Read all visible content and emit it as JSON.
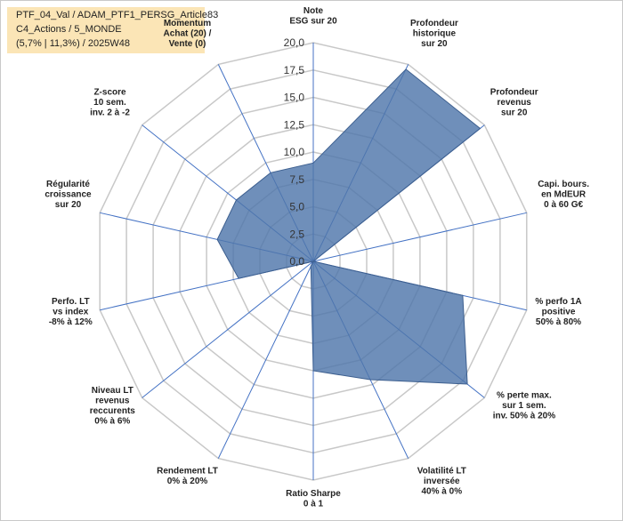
{
  "header": {
    "line1": "PTF_04_Val / ADAM_PTF1_PERSG_Article83",
    "line2": "C4_Actions / 5_MONDE",
    "line3": "(5,7% | 11,3%) / 2025W48"
  },
  "chart_data": {
    "type": "radar",
    "title": "PTF_04_Val / ADAM_PTF1_PERSG_Article83",
    "ylim": [
      0,
      20
    ],
    "ticks": [
      "0,0",
      "2,5",
      "5,0",
      "7,5",
      "10,0",
      "12,5",
      "15,0",
      "17,5",
      "20,0"
    ],
    "axes": [
      [
        "Note",
        "ESG sur 20"
      ],
      [
        "Profondeur",
        "historique",
        "sur 20"
      ],
      [
        "Profondeur",
        "revenus",
        "sur 20"
      ],
      [
        "Capi. bours.",
        "en MdEUR",
        "0 à 60 G€"
      ],
      [
        "% perfo 1A",
        "positive",
        "50% à 80%"
      ],
      [
        "% perte max.",
        "sur 1 sem.",
        "inv. 50% à 20%"
      ],
      [
        "Volatilité LT",
        "inversée",
        "40% à 0%"
      ],
      [
        "Ratio Sharpe",
        "0 à 1"
      ],
      [
        "Rendement LT",
        "0% à 20%"
      ],
      [
        "Niveau LT",
        "revenus",
        "reccurents",
        "0% à 6%"
      ],
      [
        "Perfo. LT",
        "vs index",
        "-8% à 12%"
      ],
      [
        "Régularité",
        "croissance",
        "sur 20"
      ],
      [
        "Z-score",
        "10 sem.",
        "inv. 2 à -2"
      ],
      [
        "Momentum",
        "Achat (20) /",
        "Vente (0)"
      ]
    ],
    "series": [
      {
        "values": [
          9,
          19.5,
          19.5,
          0,
          14,
          18,
          12,
          10,
          0.5,
          0,
          7,
          9,
          9,
          9
        ],
        "color": "#4f76ab"
      }
    ],
    "grid": true
  }
}
